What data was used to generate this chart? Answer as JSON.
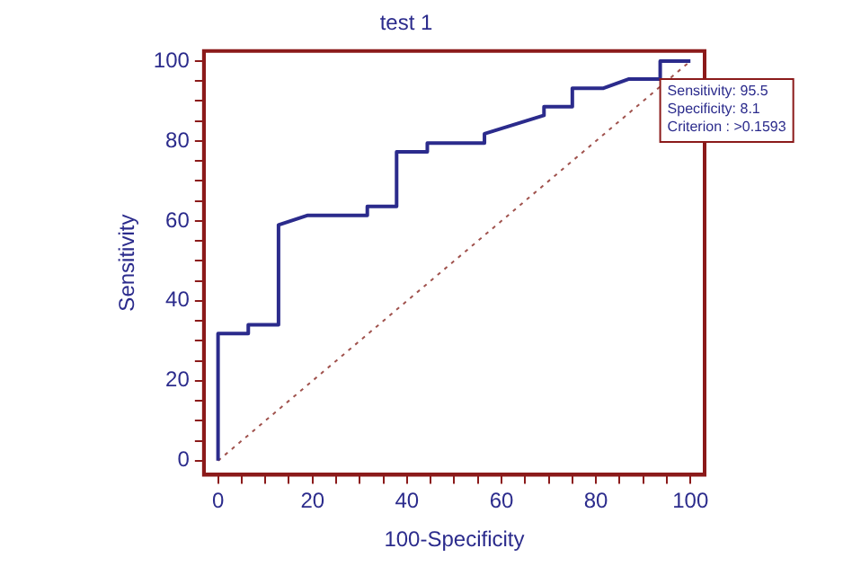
{
  "chart_data": {
    "type": "line",
    "title": "test 1",
    "xlabel": "100-Specificity",
    "ylabel": "Sensitivity",
    "series": [
      {
        "type": "line",
        "color": "#2b2b8c",
        "line_style": "solid",
        "x": [
          0,
          0,
          6.4,
          6.4,
          12.8,
          12.8,
          19,
          31.6,
          31.6,
          37.8,
          37.8,
          44.3,
          44.3,
          56.4,
          56.4,
          69,
          69,
          75,
          75,
          81.6,
          87,
          93.6,
          93.6,
          100
        ],
        "values": [
          0,
          31.8,
          31.8,
          34,
          34,
          59,
          61.4,
          61.4,
          63.6,
          63.6,
          77.3,
          77.3,
          79.5,
          79.5,
          81.8,
          86.4,
          88.6,
          88.6,
          93.2,
          93.2,
          95.5,
          95.5,
          100,
          100
        ]
      },
      {
        "type": "line",
        "color": "#a0524d",
        "line_style": "dotted",
        "x": [
          0,
          100
        ],
        "values": [
          0,
          100
        ]
      }
    ],
    "annotations": [
      {
        "text": "Sensitivity: 95.5\nSpecificity: 8.1\nCriterion : >0.1593",
        "x": 93.6,
        "y": 95.5
      }
    ],
    "xlim": [
      -3,
      103
    ],
    "ylim": [
      -3.5,
      102.5
    ],
    "xticks": [
      0,
      {
        "value": 5,
        "label": null
      },
      {
        "value": 10,
        "label": null
      },
      {
        "value": 15,
        "label": null
      },
      20,
      {
        "value": 25,
        "label": null
      },
      {
        "value": 30,
        "label": null
      },
      {
        "value": 35,
        "label": null
      },
      40,
      {
        "value": 45,
        "label": null
      },
      {
        "value": 50,
        "label": null
      },
      {
        "value": 55,
        "label": null
      },
      60,
      {
        "value": 65,
        "label": null
      },
      {
        "value": 70,
        "label": null
      },
      {
        "value": 75,
        "label": null
      },
      80,
      {
        "value": 85,
        "label": null
      },
      {
        "value": 90,
        "label": null
      },
      {
        "value": 95,
        "label": null
      },
      100
    ],
    "yticks": [
      0,
      {
        "value": 5,
        "label": null
      },
      {
        "value": 10,
        "label": null
      },
      {
        "value": 15,
        "label": null
      },
      20,
      {
        "value": 25,
        "label": null
      },
      {
        "value": 30,
        "label": null
      },
      {
        "value": 35,
        "label": null
      },
      40,
      {
        "value": 45,
        "label": null
      },
      {
        "value": 50,
        "label": null
      },
      {
        "value": 55,
        "label": null
      },
      60,
      {
        "value": 65,
        "label": null
      },
      {
        "value": 70,
        "label": null
      },
      {
        "value": 75,
        "label": null
      },
      80,
      {
        "value": 85,
        "label": null
      },
      {
        "value": 90,
        "label": null
      },
      {
        "value": 95,
        "label": null
      },
      100
    ],
    "grid": false,
    "legend": false,
    "marker": "none"
  }
}
